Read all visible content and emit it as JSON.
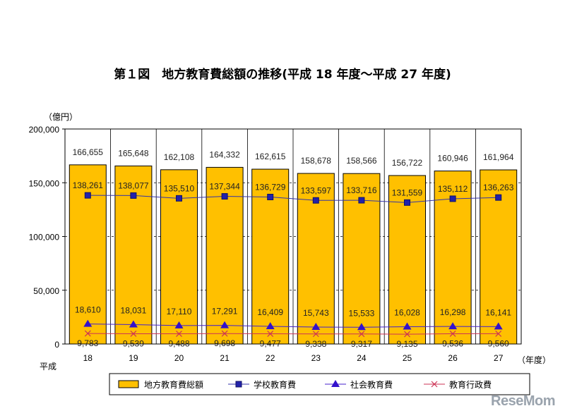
{
  "chart_data": {
    "type": "bar",
    "title": "第１図　地方教育費総額の推移(平成 18 年度～平成 27 年度)",
    "ylabel": "（億円）",
    "xlabel": "（年度）",
    "x_prefix": "平成",
    "ylim": [
      0,
      200000
    ],
    "yticks": [
      0,
      50000,
      100000,
      150000,
      200000
    ],
    "ytick_labels": [
      "0",
      "50,000",
      "100,000",
      "150,000",
      "200,000"
    ],
    "categories": [
      "18",
      "19",
      "20",
      "21",
      "22",
      "23",
      "24",
      "25",
      "26",
      "27"
    ],
    "series": [
      {
        "name": "地方教育費総額",
        "kind": "bar",
        "color": "#FFC000",
        "values": [
          166655,
          165648,
          162108,
          164332,
          162615,
          158678,
          158566,
          156722,
          160946,
          161964
        ],
        "labels": [
          "166,655",
          "165,648",
          "162,108",
          "164,332",
          "162,615",
          "158,678",
          "158,566",
          "156,722",
          "160,946",
          "161,964"
        ]
      },
      {
        "name": "学校教育費",
        "kind": "line",
        "marker": "square",
        "color": "#3333AA",
        "values": [
          138261,
          138077,
          135510,
          137344,
          136729,
          133597,
          133716,
          131559,
          135112,
          136263
        ],
        "labels": [
          "138,261",
          "138,077",
          "135,510",
          "137,344",
          "136,729",
          "133,597",
          "133,716",
          "131,559",
          "135,112",
          "136,263"
        ]
      },
      {
        "name": "社会教育費",
        "kind": "line",
        "marker": "triangle",
        "color": "#4422CC",
        "values": [
          18610,
          18031,
          17110,
          17291,
          16409,
          15743,
          15533,
          16028,
          16298,
          16141
        ],
        "labels": [
          "18,610",
          "18,031",
          "17,110",
          "17,291",
          "16,409",
          "15,743",
          "15,533",
          "16,028",
          "16,298",
          "16,141"
        ]
      },
      {
        "name": "教育行政費",
        "kind": "line",
        "marker": "x",
        "color": "#CC3355",
        "values": [
          9783,
          9539,
          9488,
          9698,
          9477,
          9338,
          9317,
          9135,
          9536,
          9560
        ],
        "labels": [
          "9,783",
          "9,539",
          "9,488",
          "9,698",
          "9,477",
          "9,338",
          "9,317",
          "9,135",
          "9,536",
          "9,560"
        ]
      }
    ],
    "grid": true,
    "legend_position": "bottom"
  },
  "watermark": "ReseMom"
}
